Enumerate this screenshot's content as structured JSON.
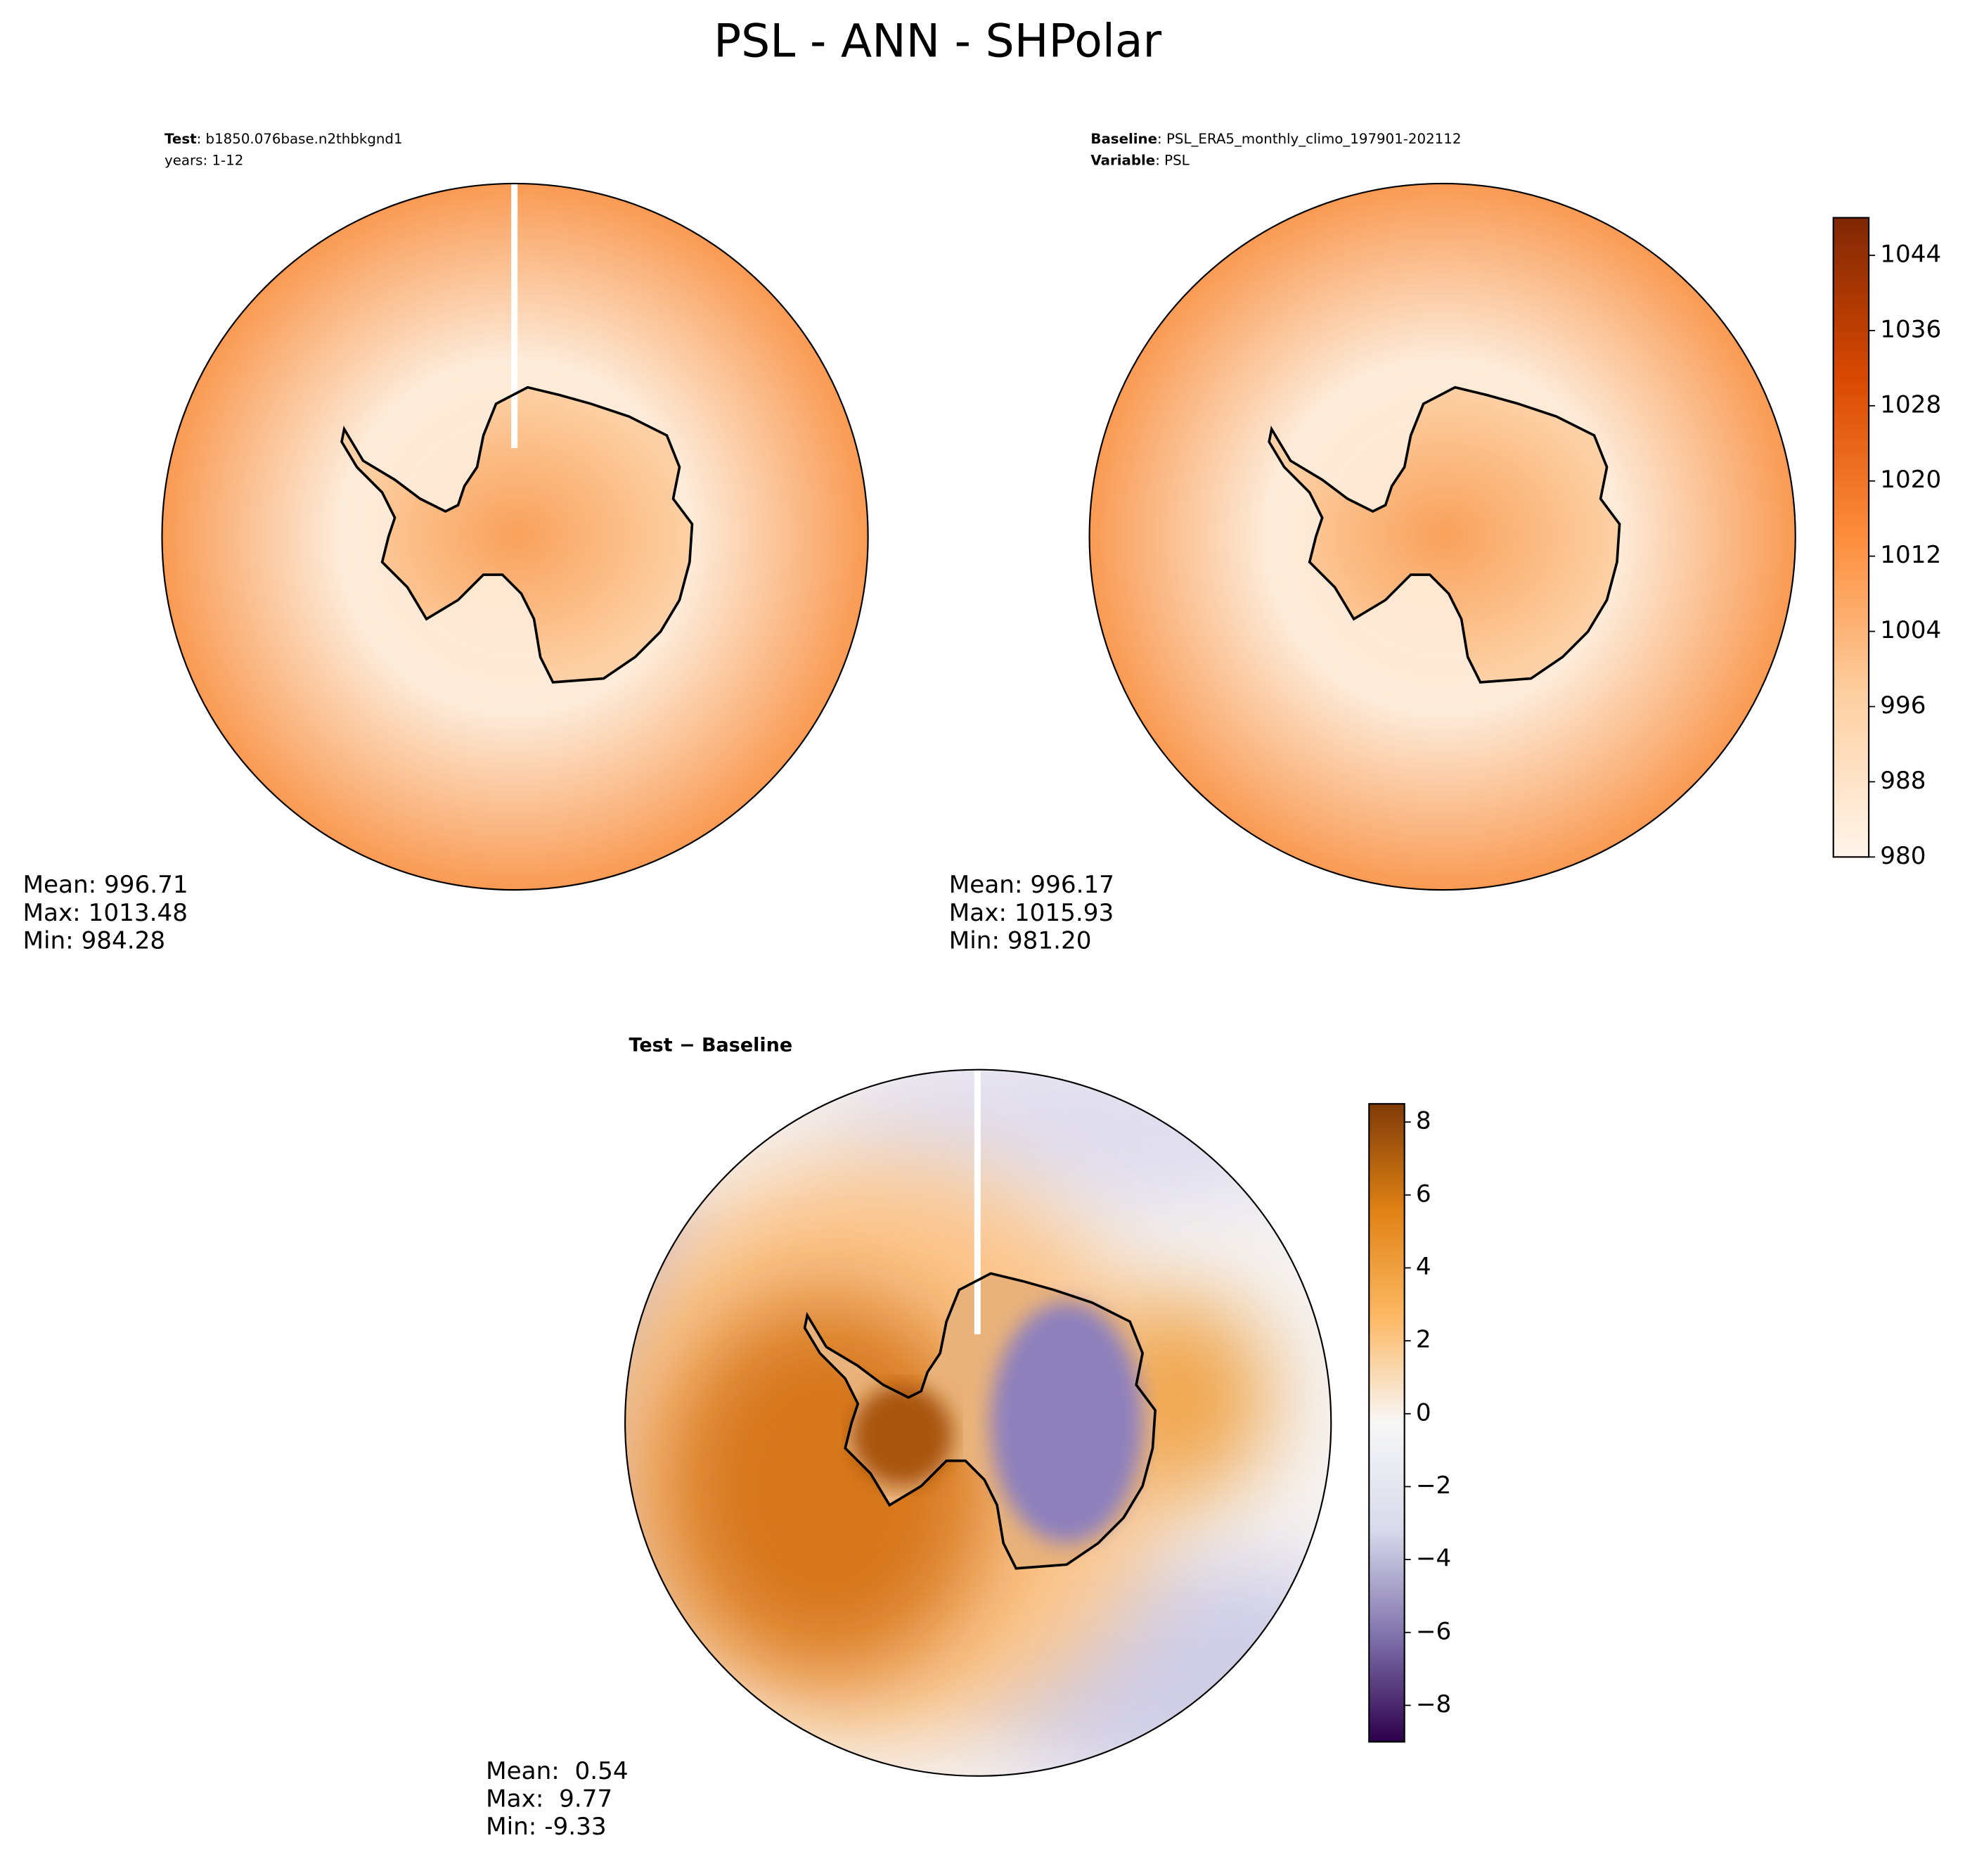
{
  "title": "PSL - ANN - SHPolar",
  "panels": [
    {
      "header": [
        {
          "key": "Test",
          "text": ": b1850.076base.n2thbkgnd1"
        },
        {
          "key": "",
          "text": "years: 1-12"
        }
      ],
      "stats": [
        "Mean: 996.71",
        "Max: 1013.48",
        "Min: 984.28"
      ]
    },
    {
      "header": [
        {
          "key": "Baseline",
          "text": ": PSL_ERA5_monthly_climo_197901-202112"
        },
        {
          "key": "Variable",
          "text": ": PSL"
        }
      ],
      "stats": [
        "Mean: 996.17",
        "Max: 1015.93",
        "Min: 981.20"
      ]
    },
    {
      "header": [
        {
          "key": "Test − Baseline",
          "text": ""
        }
      ],
      "stats": [
        "Mean:  0.54",
        "Max:  9.77",
        "Min: -9.33"
      ]
    }
  ],
  "colorbars": [
    {
      "lim": [
        980,
        1048
      ],
      "ticks": [
        980,
        988,
        996,
        1004,
        1012,
        1020,
        1028,
        1036,
        1044
      ],
      "colors": [
        "#fff5eb",
        "#fdd0a2",
        "#fd8d3c",
        "#d94801",
        "#7f2704"
      ]
    },
    {
      "lim": [
        -9,
        8.5
      ],
      "ticks": [
        {
          "value": -8,
          "label": "−8"
        },
        {
          "value": -6,
          "label": "−6"
        },
        {
          "value": -4,
          "label": "−4"
        },
        {
          "value": -2,
          "label": "−2"
        },
        0,
        2,
        4,
        6,
        8
      ],
      "colors": [
        "#2d004b",
        "#8073ac",
        "#d8daeb",
        "#f7f7f7",
        "#fdb863",
        "#e08214",
        "#7f3b08"
      ]
    }
  ]
}
